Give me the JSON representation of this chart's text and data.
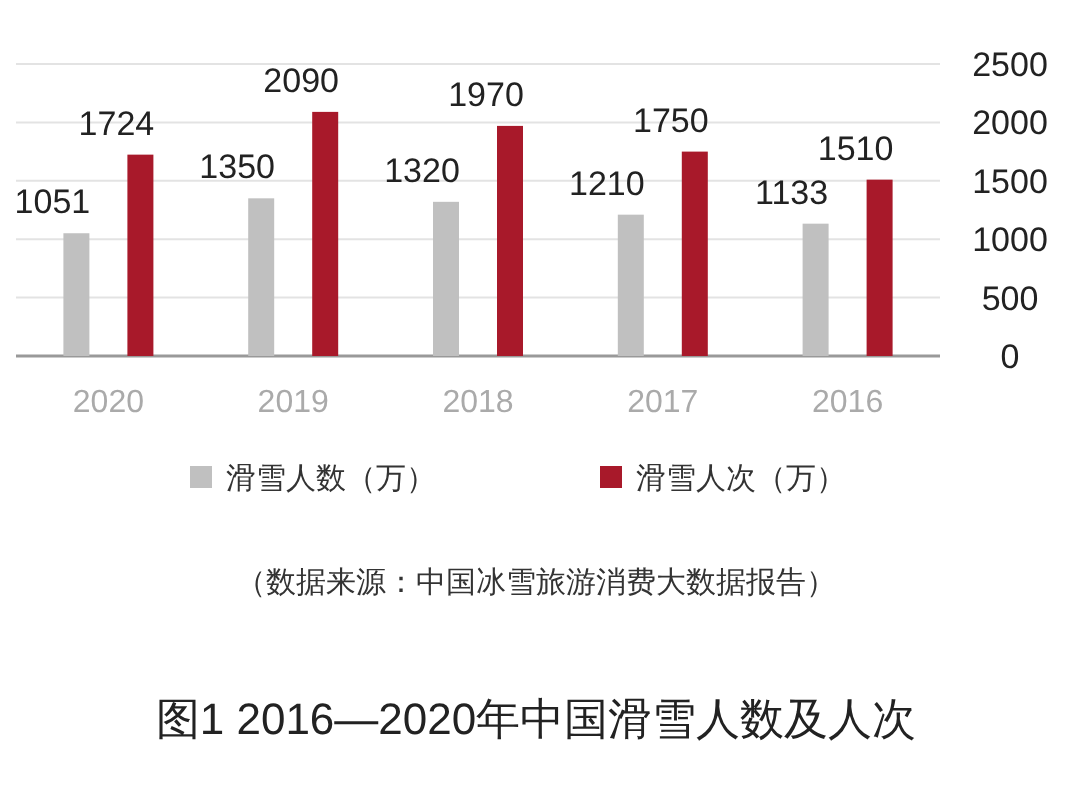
{
  "chart_data": {
    "type": "bar",
    "title": "图1  2016—2020年中国滑雪人数及人次",
    "categories": [
      "2020",
      "2019",
      "2018",
      "2017",
      "2016"
    ],
    "series": [
      {
        "name": "滑雪人数（万）",
        "color": "#c0c0c0",
        "values": [
          1051,
          1350,
          1320,
          1210,
          1133
        ]
      },
      {
        "name": "滑雪人次（万）",
        "color": "#a8192a",
        "values": [
          1724,
          2090,
          1970,
          1750,
          1510
        ]
      }
    ],
    "ylim": [
      0,
      2500
    ],
    "yticks": [
      0,
      500,
      1000,
      1500,
      2000,
      2500
    ],
    "grid": "y",
    "legend": "bottom",
    "data_labels": true,
    "annotations": [
      "（数据来源：中国冰雪旅游消费大数据报告）"
    ]
  }
}
